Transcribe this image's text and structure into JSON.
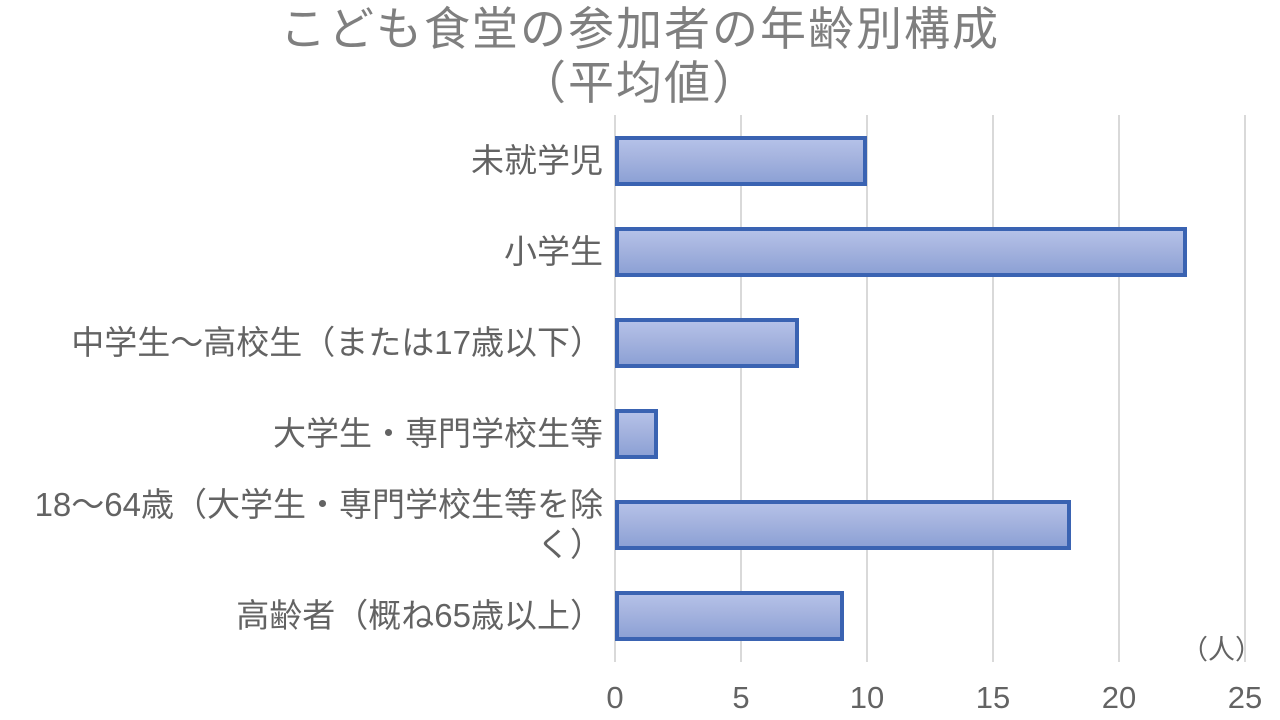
{
  "chart_data": {
    "type": "bar",
    "orientation": "horizontal",
    "title_line1": "こども食堂の参加者の年齢別構成",
    "title_line2": "（平均値）",
    "categories": [
      "未就学児",
      "小学生",
      "中学生～高校生（または17歳以下）",
      "大学生・専門学校生等",
      "18～64歳（大学生・専門学校生等を除く）",
      "高齢者（概ね65歳以上）"
    ],
    "values": [
      10.0,
      22.7,
      7.3,
      1.7,
      18.1,
      9.1
    ],
    "xlabel_unit": "（人）",
    "x_ticks": [
      0,
      5,
      10,
      15,
      20,
      25
    ],
    "xlim": [
      0,
      25
    ],
    "grid": true,
    "legend": false,
    "value_labels_shown": false,
    "colors": {
      "bar_fill_top": "#b4c1e8",
      "bar_fill_bottom": "#8da1d5",
      "bar_border": "#3a63b2",
      "gridline": "#d9d9d9",
      "title_text": "#7f7f7f",
      "axis_text": "#636363"
    }
  }
}
